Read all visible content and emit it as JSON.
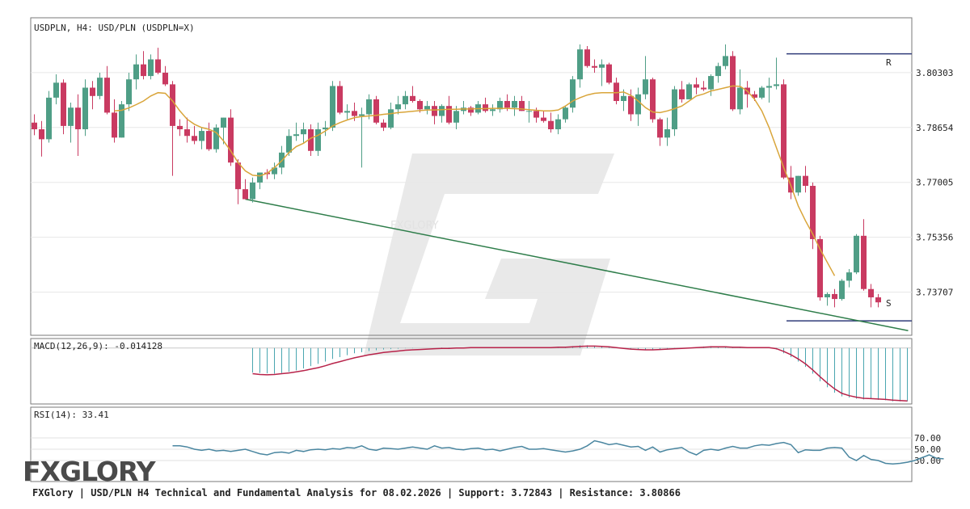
{
  "chart_data": {
    "type": "candlestick",
    "symbol_label": "USDPLN, H4: USD/PLN (USDPLN=X)",
    "y_ticks": [
      "3.80303",
      "3.78654",
      "3.77005",
      "3.75356",
      "3.73707"
    ],
    "ylim": [
      3.7241,
      3.8195
    ],
    "series": [
      {
        "name": "USDPLN",
        "values": [
          [
            3.788,
            3.7905,
            3.7842,
            3.786
          ],
          [
            3.786,
            3.7885,
            3.7778,
            3.783
          ],
          [
            3.783,
            3.7975,
            3.782,
            3.7955
          ],
          [
            3.7955,
            3.8025,
            3.7935,
            3.8
          ],
          [
            3.8,
            3.801,
            3.7845,
            3.787
          ],
          [
            3.787,
            3.794,
            3.782,
            3.7925
          ],
          [
            3.7925,
            3.7965,
            3.778,
            3.786
          ],
          [
            3.786,
            3.801,
            3.784,
            3.7985
          ],
          [
            3.7985,
            3.8005,
            3.792,
            3.796
          ],
          [
            3.796,
            3.803,
            3.795,
            3.8015
          ],
          [
            3.8015,
            3.805,
            3.7905,
            3.791
          ],
          [
            3.791,
            3.795,
            3.782,
            3.7835
          ],
          [
            3.7835,
            3.7945,
            3.7835,
            3.7935
          ],
          [
            3.7935,
            3.803,
            3.7915,
            3.801
          ],
          [
            3.801,
            3.8085,
            3.798,
            3.8055
          ],
          [
            3.8055,
            3.8095,
            3.801,
            3.802
          ],
          [
            3.802,
            3.8085,
            3.801,
            3.807
          ],
          [
            3.807,
            3.8105,
            3.8025,
            3.803
          ],
          [
            3.803,
            3.805,
            3.799,
            3.7995
          ],
          [
            3.7995,
            3.8005,
            3.772,
            3.787
          ],
          [
            3.787,
            3.789,
            3.784,
            3.786
          ],
          [
            3.786,
            3.7895,
            3.782,
            3.784
          ],
          [
            3.784,
            3.787,
            3.7815,
            3.7825
          ],
          [
            3.7825,
            3.7865,
            3.78,
            3.7855
          ],
          [
            3.7855,
            3.788,
            3.7795,
            3.78
          ],
          [
            3.78,
            3.7875,
            3.779,
            3.7865
          ],
          [
            3.7865,
            3.7895,
            3.7815,
            3.7895
          ],
          [
            3.7895,
            3.792,
            3.775,
            3.776
          ],
          [
            3.776,
            3.777,
            3.7635,
            3.768
          ],
          [
            3.768,
            3.771,
            3.765,
            3.765
          ],
          [
            3.765,
            3.7715,
            3.764,
            3.77
          ],
          [
            3.77,
            3.773,
            3.768,
            3.773
          ],
          [
            3.773,
            3.774,
            3.771,
            3.7725
          ],
          [
            3.7725,
            3.776,
            3.771,
            3.7745
          ],
          [
            3.7745,
            3.781,
            3.7725,
            3.779
          ],
          [
            3.779,
            3.786,
            3.778,
            3.784
          ],
          [
            3.784,
            3.788,
            3.7825,
            3.7845
          ],
          [
            3.7845,
            3.788,
            3.782,
            3.786
          ],
          [
            3.786,
            3.7875,
            3.778,
            3.7795
          ],
          [
            3.7795,
            3.788,
            3.778,
            3.786
          ],
          [
            3.786,
            3.7885,
            3.784,
            3.7865
          ],
          [
            3.7865,
            3.8005,
            3.7855,
            3.799
          ],
          [
            3.799,
            3.8005,
            3.7905,
            3.791
          ],
          [
            3.791,
            3.7935,
            3.789,
            3.7915
          ],
          [
            3.7915,
            3.794,
            3.7885,
            3.79
          ],
          [
            3.79,
            3.7925,
            3.7745,
            3.7905
          ],
          [
            3.7905,
            3.7965,
            3.789,
            3.795
          ],
          [
            3.795,
            3.796,
            3.7875,
            3.788
          ],
          [
            3.788,
            3.789,
            3.7855,
            3.7865
          ],
          [
            3.7865,
            3.794,
            3.786,
            3.792
          ],
          [
            3.792,
            3.796,
            3.7905,
            3.7935
          ],
          [
            3.7935,
            3.7975,
            3.792,
            3.796
          ],
          [
            3.796,
            3.799,
            3.794,
            3.7945
          ],
          [
            3.7945,
            3.795,
            3.791,
            3.792
          ],
          [
            3.792,
            3.7945,
            3.7905,
            3.793
          ],
          [
            3.793,
            3.7945,
            3.7875,
            3.79
          ],
          [
            3.79,
            3.7935,
            3.788,
            3.793
          ],
          [
            3.793,
            3.796,
            3.7875,
            3.788
          ],
          [
            3.788,
            3.793,
            3.786,
            3.7915
          ],
          [
            3.7915,
            3.7945,
            3.7905,
            3.7925
          ],
          [
            3.7925,
            3.793,
            3.79,
            3.791
          ],
          [
            3.791,
            3.7945,
            3.7905,
            3.7935
          ],
          [
            3.7935,
            3.7955,
            3.791,
            3.7915
          ],
          [
            3.7915,
            3.7935,
            3.79,
            3.792
          ],
          [
            3.792,
            3.7955,
            3.791,
            3.7945
          ],
          [
            3.7945,
            3.7965,
            3.7915,
            3.7925
          ],
          [
            3.7925,
            3.796,
            3.79,
            3.7945
          ],
          [
            3.7945,
            3.796,
            3.7915,
            3.7915
          ],
          [
            3.7915,
            3.7945,
            3.788,
            3.7915
          ],
          [
            3.7915,
            3.7925,
            3.788,
            3.7895
          ],
          [
            3.7895,
            3.7915,
            3.788,
            3.7885
          ],
          [
            3.7885,
            3.791,
            3.785,
            3.786
          ],
          [
            3.786,
            3.7905,
            3.7845,
            3.789
          ],
          [
            3.789,
            3.793,
            3.788,
            3.7925
          ],
          [
            3.7925,
            3.802,
            3.791,
            3.801
          ],
          [
            3.801,
            3.8115,
            3.7985,
            3.81
          ],
          [
            3.81,
            3.811,
            3.8045,
            3.805
          ],
          [
            3.805,
            3.807,
            3.803,
            3.8045
          ],
          [
            3.8045,
            3.807,
            3.799,
            3.8055
          ],
          [
            3.8055,
            3.806,
            3.7995,
            3.8
          ],
          [
            3.8,
            3.8015,
            3.7935,
            3.7945
          ],
          [
            3.7945,
            3.798,
            3.7915,
            3.796
          ],
          [
            3.796,
            3.798,
            3.7885,
            3.7905
          ],
          [
            3.7905,
            3.7985,
            3.787,
            3.7965
          ],
          [
            3.7965,
            3.808,
            3.795,
            3.801
          ],
          [
            3.801,
            3.8015,
            3.788,
            3.789
          ],
          [
            3.789,
            3.7895,
            3.781,
            3.7835
          ],
          [
            3.7835,
            3.7895,
            3.781,
            3.786
          ],
          [
            3.786,
            3.799,
            3.784,
            3.798
          ],
          [
            3.798,
            3.8005,
            3.794,
            3.795
          ],
          [
            3.795,
            3.8,
            3.795,
            3.7995
          ],
          [
            3.7995,
            3.8015,
            3.7965,
            3.7985
          ],
          [
            3.7985,
            3.8005,
            3.7975,
            3.798
          ],
          [
            3.798,
            3.8025,
            3.796,
            3.802
          ],
          [
            3.802,
            3.806,
            3.8,
            3.805
          ],
          [
            3.805,
            3.8115,
            3.804,
            3.808
          ],
          [
            3.808,
            3.8095,
            3.7915,
            3.792
          ],
          [
            3.792,
            3.804,
            3.7905,
            3.7985
          ],
          [
            3.7985,
            3.8005,
            3.7925,
            3.7965
          ],
          [
            3.7965,
            3.7975,
            3.7945,
            3.7955
          ],
          [
            3.7955,
            3.799,
            3.795,
            3.7985
          ],
          [
            3.7985,
            3.8015,
            3.794,
            3.799
          ],
          [
            3.799,
            3.8075,
            3.798,
            3.7995
          ],
          [
            3.7995,
            3.801,
            3.771,
            3.7715
          ],
          [
            3.7715,
            3.775,
            3.765,
            3.767
          ],
          [
            3.767,
            3.772,
            3.766,
            3.772
          ],
          [
            3.772,
            3.775,
            3.767,
            3.769
          ],
          [
            3.769,
            3.77,
            3.75,
            3.753
          ],
          [
            3.753,
            3.754,
            3.7345,
            3.7355
          ],
          [
            3.7355,
            3.737,
            3.733,
            3.7365
          ],
          [
            3.7365,
            3.738,
            3.7325,
            3.735
          ],
          [
            3.735,
            3.741,
            3.7345,
            3.7405
          ],
          [
            3.7405,
            3.744,
            3.7385,
            3.743
          ],
          [
            3.743,
            3.7545,
            3.7425,
            3.754
          ],
          [
            3.754,
            3.759,
            3.7375,
            3.738
          ],
          [
            3.738,
            3.7395,
            3.7325,
            3.7355
          ],
          [
            3.7355,
            3.7365,
            3.7325,
            3.734
          ]
        ]
      },
      {
        "name": "MA",
        "values": [
          null,
          null,
          null,
          null,
          null,
          null,
          null,
          null,
          null,
          null,
          null,
          3.7915,
          3.7917,
          3.7924,
          3.7934,
          3.7945,
          3.796,
          3.797,
          3.7968,
          3.7945,
          3.7915,
          3.789,
          3.7875,
          3.7865,
          3.786,
          3.785,
          3.7825,
          3.7795,
          3.776,
          3.7735,
          3.7722,
          3.772,
          3.7728,
          3.7745,
          3.7765,
          3.779,
          3.7808,
          3.7818,
          3.7833,
          3.7842,
          3.7855,
          3.787,
          3.788,
          3.7888,
          3.7895,
          3.7898,
          3.79,
          3.7902,
          3.7905,
          3.7907,
          3.791,
          3.7912,
          3.7914,
          3.7916,
          3.7918,
          3.7918,
          3.7919,
          3.792,
          3.792,
          3.7921,
          3.7921,
          3.7922,
          3.7922,
          3.7923,
          3.7923,
          3.7923,
          3.7922,
          3.7921,
          3.7919,
          3.7917,
          3.7915,
          3.7915,
          3.7918,
          3.793,
          3.7945,
          3.7955,
          3.7963,
          3.7968,
          3.797,
          3.797,
          3.797,
          3.7972,
          3.7962,
          3.7945,
          3.7925,
          3.7912,
          3.791,
          3.7915,
          3.7922,
          3.793,
          3.7945,
          3.796,
          3.7966,
          3.7975,
          3.798,
          3.7985,
          3.799,
          3.7989,
          3.7975,
          3.795,
          3.7915,
          3.7865,
          3.7805,
          3.7745,
          3.769,
          3.763,
          3.7585,
          3.7545,
          3.75,
          3.746,
          3.742
        ]
      }
    ],
    "support": 3.72843,
    "resistance": 3.80866,
    "support_label": "S",
    "resistance_label": "R",
    "trendline": {
      "from_index": 29,
      "from_value": 3.765,
      "to_index": 120,
      "to_value": 3.7255
    },
    "macd": {
      "label": "MACD(12,26,9): -0.014128",
      "range": [
        -0.0148,
        0.0025
      ],
      "start_index": 30,
      "histogram": [
        -0.0065,
        -0.0066,
        -0.0067,
        -0.0068,
        -0.0066,
        -0.0063,
        -0.0059,
        -0.0054,
        -0.0048,
        -0.0042,
        -0.0036,
        -0.0029,
        -0.0024,
        -0.0019,
        -0.0014,
        -0.0011,
        -0.0008,
        -0.0006,
        -0.0004,
        -0.0003,
        -0.0002,
        -0.0001,
        -0.0001,
        0.0,
        0.0,
        0.0,
        0.0001,
        0.0001,
        0.0001,
        0.0001,
        0.0001,
        0.0001,
        0.0002,
        0.0002,
        0.0002,
        0.0002,
        0.0002,
        0.0001,
        0.0001,
        0.0001,
        0.0,
        0.0001,
        0.0002,
        0.0003,
        0.0005,
        0.0007,
        0.0007,
        0.0006,
        0.0005,
        0.0004,
        0.0002,
        0.0,
        -0.0003,
        -0.0005,
        -0.0006,
        -0.0005,
        -0.0004,
        -0.0003,
        -0.0002,
        -0.0001,
        0.0,
        0.0002,
        0.0004,
        0.0005,
        0.0004,
        0.0003,
        0.0002,
        0.0001,
        0.0001,
        0.0001,
        0.0001,
        0.0001,
        -0.0004,
        -0.0014,
        -0.0024,
        -0.0036,
        -0.005,
        -0.0068,
        -0.0088,
        -0.0104,
        -0.0118,
        -0.0128,
        -0.0131,
        -0.0134,
        -0.0136,
        -0.0135,
        -0.0137,
        -0.0138,
        -0.0141,
        -0.0141,
        -0.0141
      ],
      "signal": [
        -0.0068,
        -0.007,
        -0.0071,
        -0.007,
        -0.0068,
        -0.0066,
        -0.0063,
        -0.006,
        -0.0056,
        -0.0052,
        -0.0047,
        -0.0041,
        -0.0036,
        -0.0031,
        -0.0026,
        -0.0022,
        -0.0018,
        -0.0015,
        -0.0012,
        -0.001,
        -0.0008,
        -0.0006,
        -0.0005,
        -0.0004,
        -0.0003,
        -0.0002,
        -0.0001,
        -0.0001,
        0.0,
        0.0,
        0.0001,
        0.0001,
        0.0001,
        0.0001,
        0.0001,
        0.0001,
        0.0001,
        0.0001,
        0.0001,
        0.0001,
        0.0001,
        0.0001,
        0.0002,
        0.0002,
        0.0003,
        0.0004,
        0.0005,
        0.0005,
        0.0004,
        0.0003,
        0.0001,
        -0.0001,
        -0.0003,
        -0.0004,
        -0.0005,
        -0.0005,
        -0.0004,
        -0.0003,
        -0.0002,
        -0.0001,
        0.0,
        0.0001,
        0.0002,
        0.0003,
        0.0003,
        0.0003,
        0.0002,
        0.0002,
        0.0001,
        0.0001,
        0.0001,
        0.0001,
        -0.0002,
        -0.0009,
        -0.0018,
        -0.0029,
        -0.0042,
        -0.0058,
        -0.0076,
        -0.0093,
        -0.0108,
        -0.012,
        -0.0126,
        -0.013,
        -0.0133,
        -0.0134,
        -0.0135,
        -0.0136,
        -0.0138,
        -0.0139,
        -0.014
      ]
    },
    "rsi": {
      "label": "RSI(14): 33.41",
      "range": [
        0,
        100
      ],
      "levels": [
        "70.00",
        "50.00",
        "30.00"
      ],
      "start_index": 19,
      "values": [
        56,
        56,
        54,
        50,
        48,
        50,
        47,
        48,
        46,
        48,
        50,
        46,
        42,
        40,
        44,
        45,
        43,
        48,
        46,
        49,
        50,
        49,
        51,
        50,
        53,
        52,
        56,
        50,
        48,
        52,
        51,
        50,
        52,
        54,
        52,
        50,
        56,
        52,
        53,
        50,
        49,
        51,
        52,
        49,
        50,
        47,
        50,
        53,
        55,
        50,
        50,
        51,
        49,
        47,
        45,
        47,
        50,
        56,
        65,
        62,
        58,
        60,
        57,
        54,
        55,
        48,
        54,
        45,
        49,
        51,
        53,
        45,
        40,
        48,
        50,
        48,
        52,
        55,
        52,
        52,
        56,
        58,
        57,
        60,
        62,
        58,
        44,
        49,
        48,
        48,
        52,
        53,
        52,
        36,
        30,
        39,
        32,
        30,
        25,
        24,
        25,
        27,
        30,
        35,
        40,
        34,
        33
      ]
    },
    "watermark_text": "FXGLORY"
  },
  "footer": {
    "text": "FXGlory | USD/PLN H4 Technical and Fundamental Analysis for 08.02.2026 | Support: 3.72843 | Resistance: 3.80866"
  },
  "logo": {
    "text": "FXGLORY"
  },
  "colors": {
    "up": "#4f9e86",
    "down": "#c93a61",
    "ma": "#d9a53a",
    "trend": "#2e7d4a",
    "sr": "#303c7a",
    "macd_hist": "#4aa6b0",
    "macd_signal": "#b8234a",
    "rsi": "#4a86a0",
    "grid": "#e7e7e7",
    "panel_border": "#7a7a7a",
    "watermark": "#e6e6e6"
  }
}
